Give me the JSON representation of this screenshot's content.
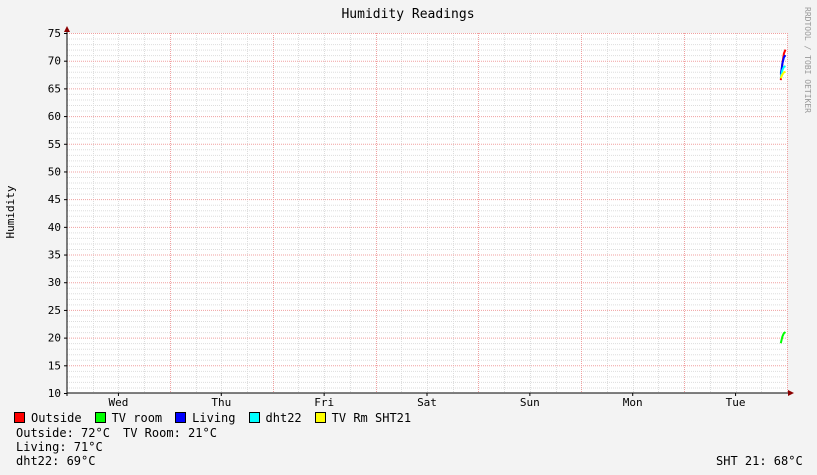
{
  "chart_data": {
    "type": "line",
    "title": "Humidity Readings",
    "ylabel": "Humidity",
    "xlabel": "",
    "ylim": [
      10,
      75
    ],
    "yticks": [
      10,
      15,
      20,
      25,
      30,
      35,
      40,
      45,
      50,
      55,
      60,
      65,
      70,
      75
    ],
    "xlim": [
      0,
      7
    ],
    "categories": [
      "Wed",
      "Thu",
      "Fri",
      "Sat",
      "Sun",
      "Mon",
      "Tue"
    ],
    "grid": true,
    "legend_position": "bottom",
    "side_label": "RRDTOOL / TOBI OETIKER",
    "series": [
      {
        "name": "Outside",
        "color": "#ff0000",
        "points": [
          [
            6.94,
            66.5
          ],
          [
            6.955,
            69.5
          ],
          [
            6.97,
            71.3
          ],
          [
            6.985,
            72.0
          ]
        ]
      },
      {
        "name": "TV room",
        "color": "#00ff00",
        "points": [
          [
            6.94,
            19.0
          ],
          [
            6.955,
            20.2
          ],
          [
            6.97,
            20.8
          ],
          [
            6.985,
            21.0
          ]
        ]
      },
      {
        "name": "Living",
        "color": "#0000ff",
        "points": [
          [
            6.94,
            67.5
          ],
          [
            6.955,
            69.5
          ],
          [
            6.97,
            70.6
          ],
          [
            6.985,
            71.0
          ]
        ]
      },
      {
        "name": "dht22",
        "color": "#00ffff",
        "points": [
          [
            6.94,
            67.0
          ],
          [
            6.955,
            68.3
          ],
          [
            6.97,
            68.9
          ],
          [
            6.985,
            69.0
          ]
        ]
      },
      {
        "name": "TV Rm SHT21",
        "color": "#ffff00",
        "points": [
          [
            6.94,
            66.8
          ],
          [
            6.955,
            67.5
          ],
          [
            6.97,
            67.9
          ],
          [
            6.985,
            68.0
          ]
        ]
      }
    ]
  },
  "stats": {
    "outside": "Outside: 72°C",
    "tv_room": "TV Room: 21°C",
    "living": "Living: 71°C",
    "dht22": "dht22: 69°C",
    "sht21": "SHT 21: 68°C"
  }
}
